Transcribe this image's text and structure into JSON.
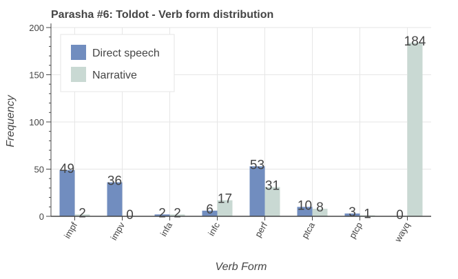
{
  "chart_data": {
    "type": "bar",
    "title": "Parasha #6: Toldot - Verb form distribution",
    "xlabel": "Verb Form",
    "ylabel": "Frequency",
    "categories": [
      "impf",
      "impv",
      "infa",
      "infc",
      "perf",
      "ptca",
      "ptcp",
      "wayq"
    ],
    "series": [
      {
        "name": "Direct speech",
        "color": "#718dbf",
        "values": [
          49,
          36,
          2,
          6,
          53,
          10,
          3,
          0
        ]
      },
      {
        "name": "Narrative",
        "color": "#c9d9d3",
        "values": [
          2,
          0,
          2,
          17,
          31,
          8,
          1,
          184
        ]
      }
    ],
    "ylim": [
      0,
      200
    ],
    "yticks": [
      0,
      50,
      100,
      150,
      200
    ],
    "grid": true,
    "legend_position": "top-left"
  }
}
